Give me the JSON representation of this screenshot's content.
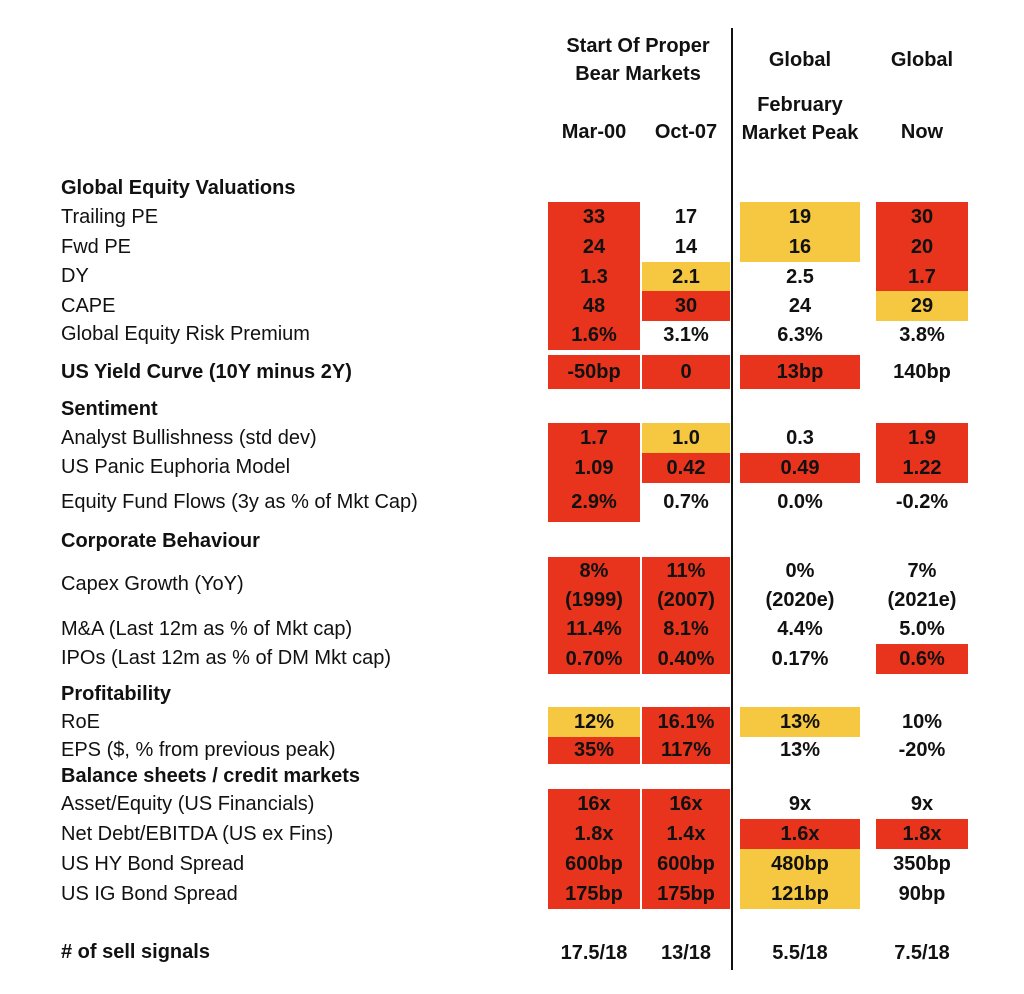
{
  "header": {
    "group_bear": "Start Of Proper Bear Markets",
    "group_global1": "Global",
    "group_global2": "Global",
    "col_mar00": "Mar-00",
    "col_oct07": "Oct-07",
    "col_feb": "February Market Peak",
    "col_now": "Now"
  },
  "colors": {
    "red": "#e8341c",
    "amber": "#f6c842"
  },
  "sections": {
    "valuations": "Global Equity Valuations",
    "sentiment": "Sentiment",
    "corporate": "Corporate Behaviour",
    "profitability": "Profitability",
    "balance": "Balance sheets / credit markets"
  },
  "rows": {
    "trailing_pe": {
      "label": "Trailing PE",
      "values": [
        "33",
        "17",
        "19",
        "30"
      ],
      "status": [
        "red",
        "none",
        "amber",
        "red"
      ]
    },
    "fwd_pe": {
      "label": "Fwd PE",
      "values": [
        "24",
        "14",
        "16",
        "20"
      ],
      "status": [
        "red",
        "none",
        "amber",
        "red"
      ]
    },
    "dy": {
      "label": "DY",
      "values": [
        "1.3",
        "2.1",
        "2.5",
        "1.7"
      ],
      "status": [
        "red",
        "amber",
        "none",
        "red"
      ]
    },
    "cape": {
      "label": "CAPE",
      "values": [
        "48",
        "30",
        "24",
        "29"
      ],
      "status": [
        "red",
        "red",
        "none",
        "amber"
      ]
    },
    "erp": {
      "label": "Global Equity Risk Premium",
      "values": [
        "1.6%",
        "3.1%",
        "6.3%",
        "3.8%"
      ],
      "status": [
        "red",
        "none",
        "none",
        "none"
      ]
    },
    "yield_curve": {
      "label": "US Yield Curve (10Y minus 2Y)",
      "values": [
        "-50bp",
        "0",
        "13bp",
        "140bp"
      ],
      "status": [
        "red",
        "red",
        "red",
        "none"
      ]
    },
    "analyst": {
      "label": "Analyst Bullishness (std dev)",
      "values": [
        "1.7",
        "1.0",
        "0.3",
        "1.9"
      ],
      "status": [
        "red",
        "amber",
        "none",
        "red"
      ]
    },
    "panic": {
      "label": "US Panic Euphoria Model",
      "values": [
        "1.09",
        "0.42",
        "0.49",
        "1.22"
      ],
      "status": [
        "red",
        "red",
        "red",
        "red"
      ]
    },
    "fund_flows": {
      "label": "Equity Fund Flows (3y as % of Mkt Cap)",
      "values": [
        "2.9%",
        "0.7%",
        "0.0%",
        "-0.2%"
      ],
      "status": [
        "red",
        "none",
        "none",
        "none"
      ]
    },
    "capex": {
      "label": "Capex Growth (YoY)",
      "values": [
        "8%",
        "11%",
        "0%",
        "7%"
      ],
      "subvalues": [
        "(1999)",
        "(2007)",
        "(2020e)",
        "(2021e)"
      ],
      "status": [
        "red",
        "red",
        "none",
        "none"
      ]
    },
    "ma": {
      "label": "M&A (Last 12m as % of Mkt cap)",
      "values": [
        "11.4%",
        "8.1%",
        "4.4%",
        "5.0%"
      ],
      "status": [
        "red",
        "red",
        "none",
        "none"
      ]
    },
    "ipos": {
      "label": "IPOs (Last 12m as % of DM Mkt cap)",
      "values": [
        "0.70%",
        "0.40%",
        "0.17%",
        "0.6%"
      ],
      "status": [
        "red",
        "red",
        "none",
        "red"
      ]
    },
    "roe": {
      "label": "RoE",
      "values": [
        "12%",
        "16.1%",
        "13%",
        "10%"
      ],
      "status": [
        "amber",
        "red",
        "amber",
        "none"
      ]
    },
    "eps": {
      "label": "EPS  ($, % from previous peak)",
      "values": [
        "35%",
        "117%",
        "13%",
        "-20%"
      ],
      "status": [
        "red",
        "red",
        "none",
        "none"
      ]
    },
    "asset_equity": {
      "label": "Asset/Equity (US Financials)",
      "values": [
        "16x",
        "16x",
        "9x",
        "9x"
      ],
      "status": [
        "red",
        "red",
        "none",
        "none"
      ]
    },
    "net_debt": {
      "label": "Net Debt/EBITDA (US ex Fins)",
      "values": [
        "1.8x",
        "1.4x",
        "1.6x",
        "1.8x"
      ],
      "status": [
        "red",
        "red",
        "red",
        "red"
      ]
    },
    "hy_spread": {
      "label": "US HY Bond Spread",
      "values": [
        "600bp",
        "600bp",
        "480bp",
        "350bp"
      ],
      "status": [
        "red",
        "red",
        "amber",
        "none"
      ]
    },
    "ig_spread": {
      "label": "US IG Bond Spread",
      "values": [
        "175bp",
        "175bp",
        "121bp",
        "90bp"
      ],
      "status": [
        "red",
        "red",
        "amber",
        "none"
      ]
    },
    "sell_signals": {
      "label": "# of sell signals",
      "values": [
        "17.5/18",
        "13/18",
        "5.5/18",
        "7.5/18"
      ],
      "status": [
        "none",
        "none",
        "none",
        "none"
      ]
    }
  }
}
